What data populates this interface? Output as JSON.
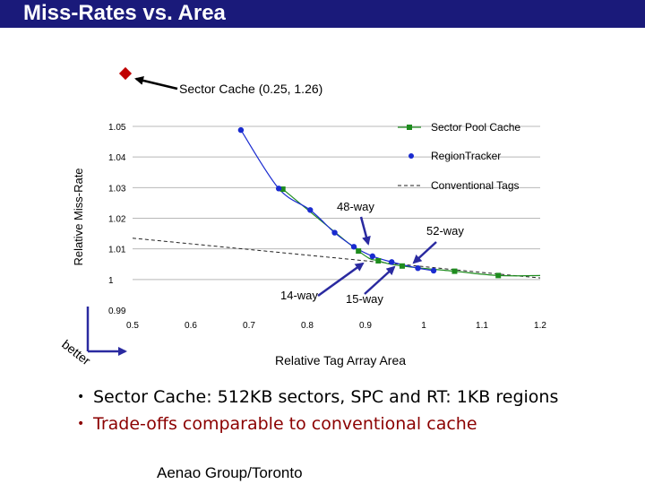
{
  "slide": {
    "title": "Miss-Rates vs. Area",
    "bullets": [
      {
        "text": "Sector Cache: 512KB sectors, SPC and RT: 1KB regions",
        "color": "#000000"
      },
      {
        "text": "Trade-offs comparable to conventional cache",
        "color": "#8b0000"
      }
    ],
    "footer": "Aenao Group/Toronto"
  },
  "colors": {
    "title_bar": "#1a1a7a",
    "sector_pool": "#1e8c1e",
    "region_tracker": "#1a2bd0",
    "conventional": "#222222",
    "outlier": "#c00000",
    "arrow": "#2a2aa0"
  },
  "chart_data": {
    "type": "scatter",
    "title": "",
    "xlabel": "Relative Tag Array Area",
    "ylabel": "Relative Miss-Rate",
    "xlim": [
      0.5,
      1.2
    ],
    "ylim": [
      0.99,
      1.05
    ],
    "xticks": [
      "0.5",
      "0.6",
      "0.7",
      "0.8",
      "0.9",
      "1",
      "1.1",
      "1.2"
    ],
    "yticks": [
      "0.99",
      "1",
      "1.01",
      "1.02",
      "1.03",
      "1.04",
      "1.05"
    ],
    "series": [
      {
        "name": "Sector Pool Cache",
        "marker": "square",
        "x": [
          0.758,
          0.888,
          0.922,
          0.963,
          1.053,
          1.128
        ],
        "y": [
          1.0295,
          1.0093,
          1.0061,
          1.0044,
          1.0027,
          1.0013
        ]
      },
      {
        "name": "RegionTracker",
        "marker": "circle",
        "x": [
          0.686,
          0.751,
          0.805,
          0.847,
          0.88,
          0.912,
          0.945,
          0.99,
          1.017
        ],
        "y": [
          1.0488,
          1.0297,
          1.0227,
          1.0153,
          1.0107,
          1.0076,
          1.0057,
          1.0037,
          1.0029
        ]
      },
      {
        "name": "Conventional Tags",
        "marker": "dashed",
        "x": [
          0.5,
          0.7,
          0.9,
          1.1,
          1.2
        ],
        "y": [
          1.0135,
          1.0098,
          1.0061,
          1.0023,
          1.0005
        ]
      }
    ],
    "annotations": {
      "sector_cache": "Sector Cache (0.25, 1.26)",
      "way48": "48-way",
      "way52": "52-way",
      "way14": "14-way",
      "way15": "15-way",
      "better": "better"
    }
  }
}
